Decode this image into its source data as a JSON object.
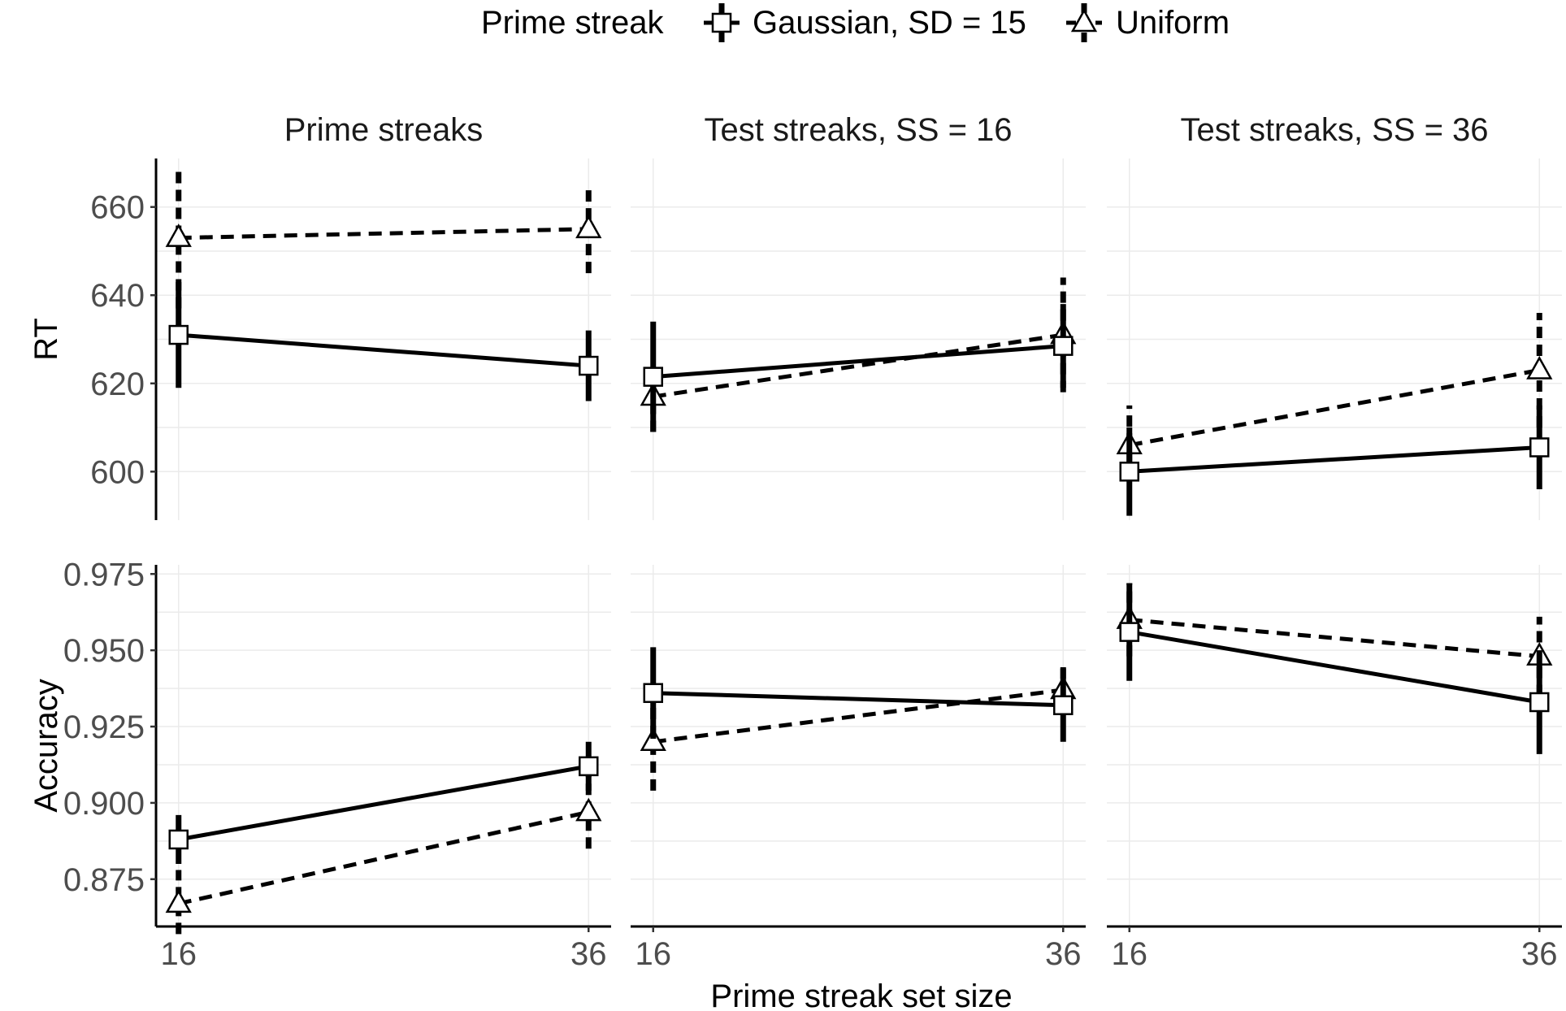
{
  "chart_data": {
    "type": "line",
    "legend": {
      "position": "top",
      "title": "Prime streak",
      "entries": [
        {
          "name": "Gaussian, SD = 15",
          "marker": "square",
          "linestyle": "solid"
        },
        {
          "name": "Uniform",
          "marker": "triangle",
          "linestyle": "dashed"
        }
      ]
    },
    "xlabel": "Prime streak set size",
    "x_ticks": [
      "16",
      "36"
    ],
    "x_values": [
      16,
      36
    ],
    "grid": true,
    "columns": [
      "Prime streaks",
      "Test streaks, SS =  16",
      "Test streaks, SS =  36"
    ],
    "rows": [
      {
        "ylabel": "RT",
        "ylim": [
          589,
          671
        ],
        "y_ticks": [
          600,
          620,
          640,
          660
        ],
        "y_tick_labels": [
          "600",
          "620",
          "640",
          "660"
        ],
        "panels": [
          {
            "series": [
              {
                "name": "Gaussian, SD = 15",
                "y": [
                  631,
                  624
                ],
                "err_low": [
                  619,
                  616
                ],
                "err_high": [
                  643,
                  632
                ]
              },
              {
                "name": "Uniform",
                "y": [
                  653,
                  655
                ],
                "err_low": [
                  637,
                  645
                ],
                "err_high": [
                  669,
                  665
                ]
              }
            ]
          },
          {
            "series": [
              {
                "name": "Gaussian, SD = 15",
                "y": [
                  621.5,
                  628.5
                ],
                "err_low": [
                  609,
                  619
                ],
                "err_high": [
                  634,
                  638
                ]
              },
              {
                "name": "Uniform",
                "y": [
                  617,
                  631
                ],
                "err_low": [
                  609,
                  618
                ],
                "err_high": [
                  625,
                  644
                ]
              }
            ]
          },
          {
            "series": [
              {
                "name": "Gaussian, SD = 15",
                "y": [
                  600,
                  605.5
                ],
                "err_low": [
                  590,
                  596
                ],
                "err_high": [
                  610,
                  615
                ]
              },
              {
                "name": "Uniform",
                "y": [
                  606,
                  623
                ],
                "err_low": [
                  598,
                  610
                ],
                "err_high": [
                  615,
                  636
                ]
              }
            ]
          }
        ]
      },
      {
        "ylabel": "Accuracy",
        "ylim": [
          0.8595,
          0.978
        ],
        "y_ticks": [
          0.875,
          0.9,
          0.925,
          0.95,
          0.975
        ],
        "y_tick_labels": [
          "0.875",
          "0.900",
          "0.925",
          "0.950",
          "0.975"
        ],
        "panels": [
          {
            "series": [
              {
                "name": "Gaussian, SD = 15",
                "y": [
                  0.888,
                  0.912
                ],
                "err_low": [
                  0.88,
                  0.904
                ],
                "err_high": [
                  0.896,
                  0.92
                ]
              },
              {
                "name": "Uniform",
                "y": [
                  0.867,
                  0.897
                ],
                "err_low": [
                  0.857,
                  0.885
                ],
                "err_high": [
                  0.878,
                  0.91
                ]
              }
            ]
          },
          {
            "series": [
              {
                "name": "Gaussian, SD = 15",
                "y": [
                  0.936,
                  0.932
                ],
                "err_low": [
                  0.921,
                  0.92
                ],
                "err_high": [
                  0.951,
                  0.944
                ]
              },
              {
                "name": "Uniform",
                "y": [
                  0.92,
                  0.937
                ],
                "err_low": [
                  0.904,
                  0.929
                ],
                "err_high": [
                  0.936,
                  0.946
                ]
              }
            ]
          },
          {
            "series": [
              {
                "name": "Gaussian, SD = 15",
                "y": [
                  0.956,
                  0.933
                ],
                "err_low": [
                  0.94,
                  0.916
                ],
                "err_high": [
                  0.972,
                  0.95
                ]
              },
              {
                "name": "Uniform",
                "y": [
                  0.96,
                  0.948
                ],
                "err_low": [
                  0.948,
                  0.935
                ],
                "err_high": [
                  0.972,
                  0.961
                ]
              }
            ]
          }
        ]
      }
    ]
  }
}
